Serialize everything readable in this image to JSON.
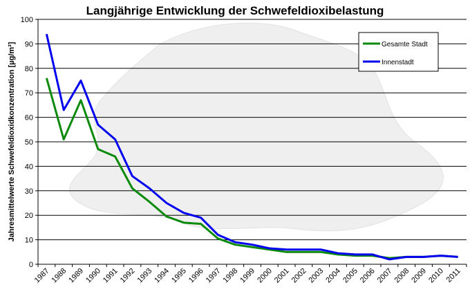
{
  "chart_data": {
    "type": "line",
    "title": "Langjährige Entwicklung der Schwefeldioxibelastung",
    "xlabel": "",
    "ylabel": "Jahresmittelwerte Schwefeldioxidkonzentration [µg/m³]",
    "ylim": [
      0,
      100
    ],
    "yticks": [
      0,
      10,
      20,
      30,
      40,
      50,
      60,
      70,
      80,
      90,
      100
    ],
    "grid": true,
    "legend_position": "top-right",
    "categories": [
      "1987",
      "1988",
      "1989",
      "1990",
      "1991",
      "1992",
      "1993",
      "1994",
      "1995",
      "1996",
      "1997",
      "1998",
      "1999",
      "2000",
      "2001",
      "2002",
      "2003",
      "2004",
      "2005",
      "2006",
      "2007",
      "2008",
      "2009",
      "2010",
      "2011"
    ],
    "series": [
      {
        "name": "Gesamte Stadt",
        "color": "#0a8a0a",
        "values": [
          76,
          51,
          67,
          47,
          44,
          31,
          25.5,
          19.5,
          17,
          16.5,
          10.5,
          8,
          7,
          6,
          5,
          5,
          5,
          4,
          3.5,
          3.5,
          2.5,
          3,
          3,
          3.5,
          3
        ]
      },
      {
        "name": "Innenstadt",
        "color": "#0000ee",
        "values": [
          94,
          63,
          75,
          57,
          51,
          36,
          31,
          25,
          21,
          19,
          12,
          9,
          8,
          6.5,
          6,
          6,
          6,
          4.5,
          4,
          4,
          2,
          3,
          3,
          3.5,
          3
        ]
      }
    ]
  }
}
